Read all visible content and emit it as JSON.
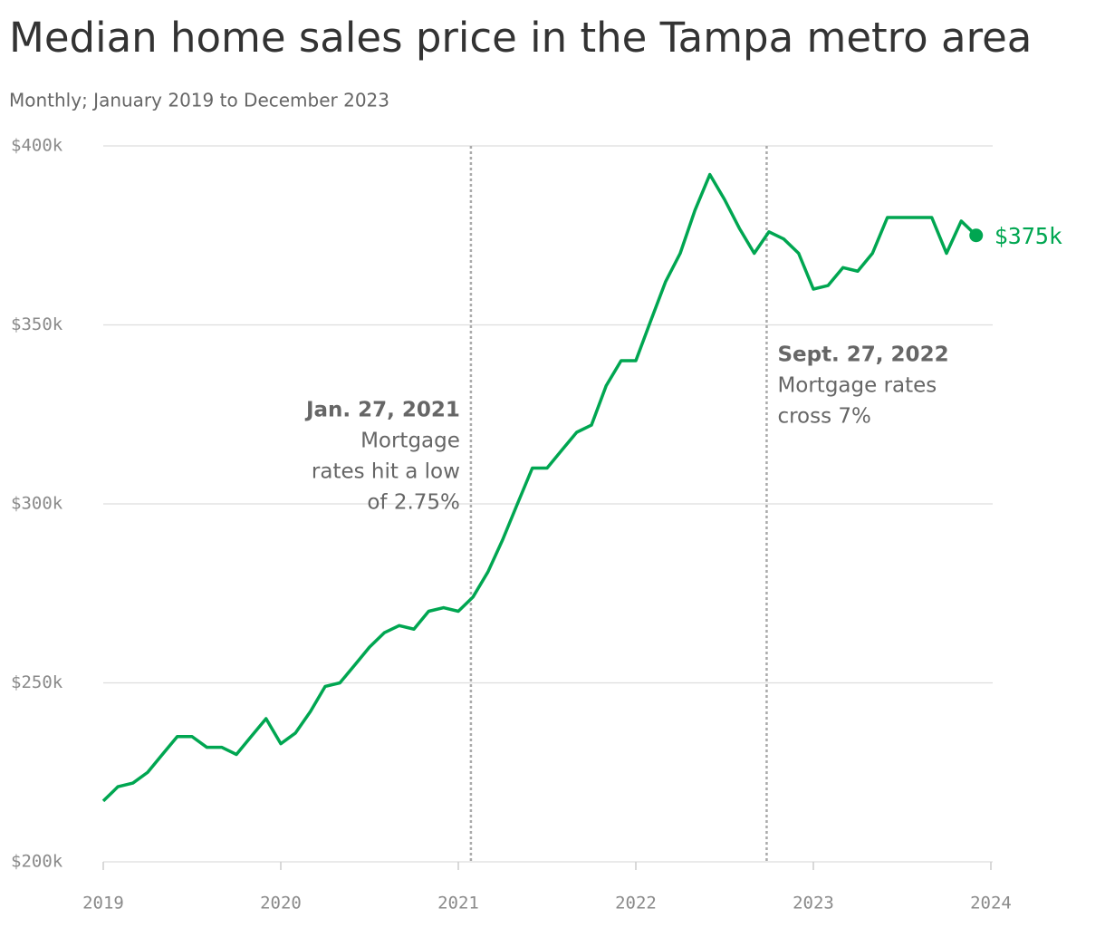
{
  "chart_data": {
    "type": "line",
    "title": "Median home sales price in the Tampa metro area",
    "subtitle": "Monthly; January 2019 to December 2023",
    "x": [
      2019,
      2019.083,
      2019.167,
      2019.25,
      2019.333,
      2019.417,
      2019.5,
      2019.583,
      2019.667,
      2019.75,
      2019.833,
      2019.917,
      2020,
      2020.083,
      2020.167,
      2020.25,
      2020.333,
      2020.417,
      2020.5,
      2020.583,
      2020.667,
      2020.75,
      2020.833,
      2020.917,
      2021,
      2021.083,
      2021.167,
      2021.25,
      2021.333,
      2021.417,
      2021.5,
      2021.583,
      2021.667,
      2021.75,
      2021.833,
      2021.917,
      2022,
      2022.083,
      2022.167,
      2022.25,
      2022.333,
      2022.417,
      2022.5,
      2022.583,
      2022.667,
      2022.75,
      2022.833,
      2022.917,
      2023,
      2023.083,
      2023.167,
      2023.25,
      2023.333,
      2023.417,
      2023.5,
      2023.583,
      2023.667,
      2023.75,
      2023.833,
      2023.917
    ],
    "values": [
      217000,
      221000,
      222000,
      225000,
      230000,
      235000,
      235000,
      232000,
      232000,
      230000,
      235000,
      240000,
      233000,
      236000,
      242000,
      249000,
      250000,
      255000,
      260000,
      264000,
      266000,
      265000,
      270000,
      271000,
      270000,
      274000,
      281000,
      290000,
      300000,
      310000,
      310000,
      315000,
      320000,
      322000,
      333000,
      340000,
      340000,
      351000,
      362000,
      370000,
      382000,
      392000,
      385000,
      377000,
      370000,
      376000,
      374000,
      370000,
      360000,
      361000,
      366000,
      365000,
      370000,
      380000,
      380000,
      380000,
      380000,
      370000,
      379000,
      375000
    ],
    "value_labels": [
      null,
      null,
      null,
      null,
      null,
      null,
      null,
      null,
      null,
      null,
      null,
      null,
      null,
      null,
      null,
      null,
      null,
      null,
      null,
      null,
      null,
      null,
      null,
      null,
      null,
      null,
      null,
      null,
      null,
      null,
      null,
      null,
      null,
      null,
      null,
      null,
      null,
      null,
      null,
      null,
      null,
      null,
      null,
      null,
      null,
      null,
      null,
      null,
      null,
      null,
      null,
      null,
      null,
      null,
      null,
      null,
      null,
      null,
      null,
      "$375k"
    ],
    "color": "#00a651",
    "xlim": [
      2019,
      2024
    ],
    "xticks": [
      2019,
      2020,
      2021,
      2022,
      2023,
      2024
    ],
    "ylim": [
      200000,
      400000
    ],
    "yticks": [
      {
        "value": 200000,
        "label": "$200k"
      },
      {
        "value": 250000,
        "label": "$250k"
      },
      {
        "value": 300000,
        "label": "$300k"
      },
      {
        "value": 350000,
        "label": "$350k"
      },
      {
        "value": 400000,
        "label": "$400k"
      }
    ],
    "grid": true,
    "annotations": [
      {
        "x": 2021.071,
        "title": "Jan. 27, 2021",
        "lines": [
          "Mortgage",
          "rates hit a low",
          "of 2.75%"
        ]
      },
      {
        "x": 2022.737,
        "title": "Sept. 27, 2022",
        "lines": [
          "Mortgage rates",
          "cross 7%"
        ]
      }
    ]
  }
}
